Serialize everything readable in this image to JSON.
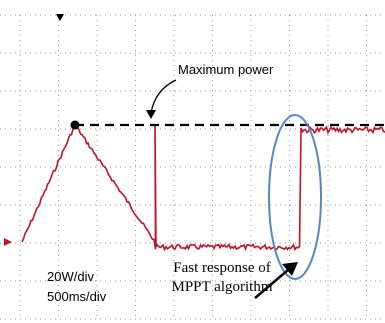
{
  "annotations": {
    "maximum_power": "Maximum power",
    "volts_per_div": "20W/div",
    "time_per_div": "500ms/div",
    "fast_response_line1": "Fast response of",
    "fast_response_line2": "MPPT algorithm"
  }
}
